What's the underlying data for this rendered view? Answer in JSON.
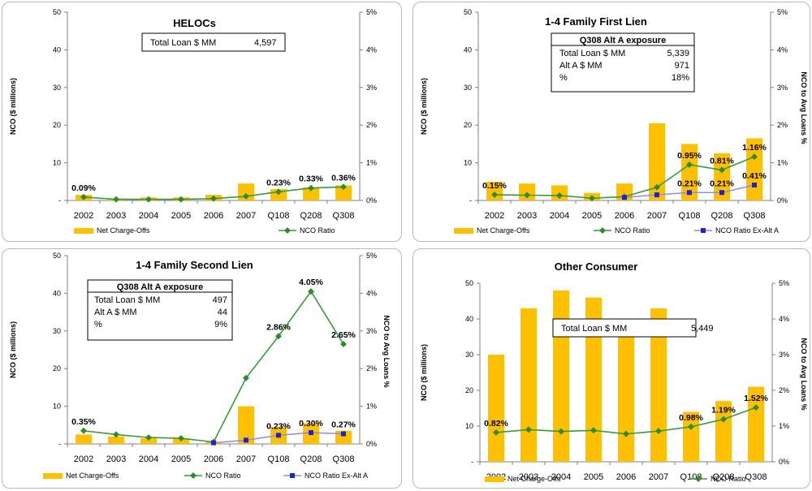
{
  "colors": {
    "bar": "#ffc000",
    "line": "#3a9a3a",
    "marker": "#2e8b2e",
    "alt_line": "#8c8ce0",
    "alt_marker": "#2222cc",
    "axis": "#808080"
  },
  "chart_data": [
    {
      "type": "bar",
      "title": "HELOCs",
      "ylabel": "NCO ($ millions)",
      "y2label": "",
      "categories": [
        "2002",
        "2003",
        "2004",
        "2005",
        "2006",
        "2007",
        "Q108",
        "Q208",
        "Q308"
      ],
      "ylim": [
        0,
        50
      ],
      "y2lim": [
        0,
        5
      ],
      "yticks": [
        "-",
        "10",
        "20",
        "30",
        "40",
        "50"
      ],
      "y2ticks": [
        "0%",
        "1%",
        "2%",
        "3%",
        "4%",
        "5%"
      ],
      "series": [
        {
          "name": "Net Charge-Offs",
          "kind": "bar",
          "values": [
            1.5,
            0.5,
            0.8,
            0.8,
            1.5,
            4.5,
            3.0,
            3.5,
            4.0
          ]
        },
        {
          "name": "NCO Ratio",
          "kind": "line",
          "values": [
            0.09,
            0.03,
            0.03,
            0.03,
            0.05,
            0.11,
            0.23,
            0.33,
            0.36
          ]
        }
      ],
      "data_labels": [
        {
          "series": 1,
          "index": 0,
          "text": "0.09%"
        },
        {
          "series": 1,
          "index": 6,
          "text": "0.23%"
        },
        {
          "series": 1,
          "index": 7,
          "text": "0.33%"
        },
        {
          "series": 1,
          "index": 8,
          "text": "0.36%"
        }
      ],
      "info_box": {
        "rows": [
          [
            "Total Loan $ MM",
            "4,597"
          ]
        ]
      },
      "grid": false
    },
    {
      "type": "bar",
      "title": "1-4 Family First Lien",
      "ylabel": "NCO ($ millions)",
      "y2label": "NCO to Avg Loans %",
      "categories": [
        "2002",
        "2003",
        "2004",
        "2005",
        "2006",
        "2007",
        "Q108",
        "Q208",
        "Q308"
      ],
      "ylim": [
        0,
        50
      ],
      "y2lim": [
        0,
        5
      ],
      "yticks": [
        "-",
        "10",
        "20",
        "30",
        "40",
        "50"
      ],
      "y2ticks": [
        "0%",
        "1%",
        "2%",
        "3%",
        "4%",
        "5%"
      ],
      "series": [
        {
          "name": "Net Charge-Offs",
          "kind": "bar",
          "values": [
            5,
            4.5,
            4,
            2,
            4.5,
            20.5,
            15,
            12.5,
            16.5
          ]
        },
        {
          "name": "NCO Ratio",
          "kind": "line",
          "values": [
            0.15,
            0.14,
            0.13,
            0.06,
            0.1,
            0.35,
            0.95,
            0.81,
            1.16
          ]
        },
        {
          "name": "NCO Ratio Ex-Alt A",
          "kind": "line-alt",
          "start": 4,
          "values": [
            null,
            null,
            null,
            null,
            0.08,
            0.15,
            0.21,
            0.21,
            0.41
          ]
        }
      ],
      "data_labels": [
        {
          "series": 1,
          "index": 0,
          "text": "0.15%"
        },
        {
          "series": 1,
          "index": 6,
          "text": "0.95%"
        },
        {
          "series": 1,
          "index": 7,
          "text": "0.81%"
        },
        {
          "series": 1,
          "index": 8,
          "text": "1.16%"
        },
        {
          "series": 2,
          "index": 6,
          "text": "0.21%"
        },
        {
          "series": 2,
          "index": 7,
          "text": "0.21%"
        },
        {
          "series": 2,
          "index": 8,
          "text": "0.41%"
        }
      ],
      "info_box": {
        "header": "Q308 Alt A exposure",
        "rows": [
          [
            "Total Loan $ MM",
            "5,339"
          ],
          [
            "Alt A $ MM",
            "971"
          ],
          [
            "%",
            "18%"
          ]
        ]
      },
      "grid": false
    },
    {
      "type": "bar",
      "title": "1-4 Family Second Lien",
      "ylabel": "NCO ($ millions)",
      "y2label": "NCO to Avg Loans %",
      "categories": [
        "2002",
        "2003",
        "2004",
        "2005",
        "2006",
        "2007",
        "Q108",
        "Q208",
        "Q308"
      ],
      "ylim": [
        0,
        50
      ],
      "y2lim": [
        0,
        5
      ],
      "yticks": [
        "-",
        "10",
        "20",
        "30",
        "40",
        "50"
      ],
      "y2ticks": [
        "0%",
        "1%",
        "2%",
        "3%",
        "4%",
        "5%"
      ],
      "series": [
        {
          "name": "Net Charge-Offs",
          "kind": "bar",
          "values": [
            2.5,
            2,
            1.5,
            1.5,
            0.5,
            10,
            4.5,
            5.5,
            3.5
          ]
        },
        {
          "name": "NCO Ratio",
          "kind": "line",
          "values": [
            0.35,
            0.25,
            0.17,
            0.15,
            0.05,
            1.75,
            2.86,
            4.05,
            2.65
          ]
        },
        {
          "name": "NCO Ratio Ex-Alt A",
          "kind": "line-alt",
          "start": 4,
          "values": [
            null,
            null,
            null,
            null,
            0.03,
            0.1,
            0.23,
            0.3,
            0.27
          ]
        }
      ],
      "data_labels": [
        {
          "series": 1,
          "index": 0,
          "text": "0.35%"
        },
        {
          "series": 1,
          "index": 6,
          "text": "2.86%"
        },
        {
          "series": 1,
          "index": 7,
          "text": "4.05%"
        },
        {
          "series": 1,
          "index": 8,
          "text": "2.65%"
        },
        {
          "series": 2,
          "index": 6,
          "text": "0.23%"
        },
        {
          "series": 2,
          "index": 7,
          "text": "0.30%"
        },
        {
          "series": 2,
          "index": 8,
          "text": "0.27%"
        }
      ],
      "info_box": {
        "header": "Q308 Alt A exposure",
        "rows": [
          [
            "Total Loan $ MM",
            "497"
          ],
          [
            "Alt A $ MM",
            "44"
          ],
          [
            "%",
            "9%"
          ]
        ]
      },
      "grid": false
    },
    {
      "type": "bar",
      "title": "Other Consumer",
      "ylabel": "NCO ($ millions)",
      "y2label": "NCO to Avg Loans %",
      "categories": [
        "2002",
        "2003",
        "2004",
        "2005",
        "2006",
        "2007",
        "Q108",
        "Q208",
        "Q308"
      ],
      "ylim": [
        0,
        50
      ],
      "y2lim": [
        0,
        5
      ],
      "yticks": [
        "-",
        "10",
        "20",
        "30",
        "40",
        "50"
      ],
      "y2ticks": [
        "0%",
        "1%",
        "2%",
        "3%",
        "4%",
        "5%"
      ],
      "series": [
        {
          "name": "Net Charge-Offs",
          "kind": "bar",
          "values": [
            30,
            43,
            48,
            46,
            36.5,
            43,
            14,
            17,
            21
          ]
        },
        {
          "name": "NCO Ratio",
          "kind": "line",
          "values": [
            0.82,
            0.9,
            0.85,
            0.88,
            0.78,
            0.86,
            0.98,
            1.19,
            1.52
          ]
        }
      ],
      "data_labels": [
        {
          "series": 1,
          "index": 0,
          "text": "0.82%"
        },
        {
          "series": 1,
          "index": 6,
          "text": "0.98%"
        },
        {
          "series": 1,
          "index": 7,
          "text": "1.19%"
        },
        {
          "series": 1,
          "index": 8,
          "text": "1.52%"
        }
      ],
      "info_box": {
        "rows": [
          [
            "Total Loan $ MM",
            "5,449"
          ]
        ]
      },
      "grid": false
    }
  ]
}
